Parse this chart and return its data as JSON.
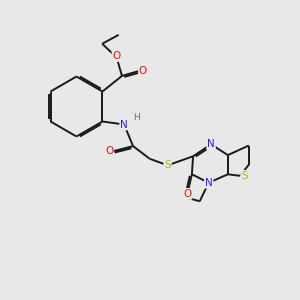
{
  "bg": "#e8e8e8",
  "bond_color": "#1a1a1a",
  "bond_lw": 1.4,
  "dbo": 0.055,
  "figsize": [
    3.0,
    3.0
  ],
  "dpi": 100,
  "colors": {
    "C": "#1a1a1a",
    "N": "#2020ff",
    "O": "#ee1111",
    "S": "#b8b800",
    "H": "#707070"
  },
  "fs": 7.5
}
